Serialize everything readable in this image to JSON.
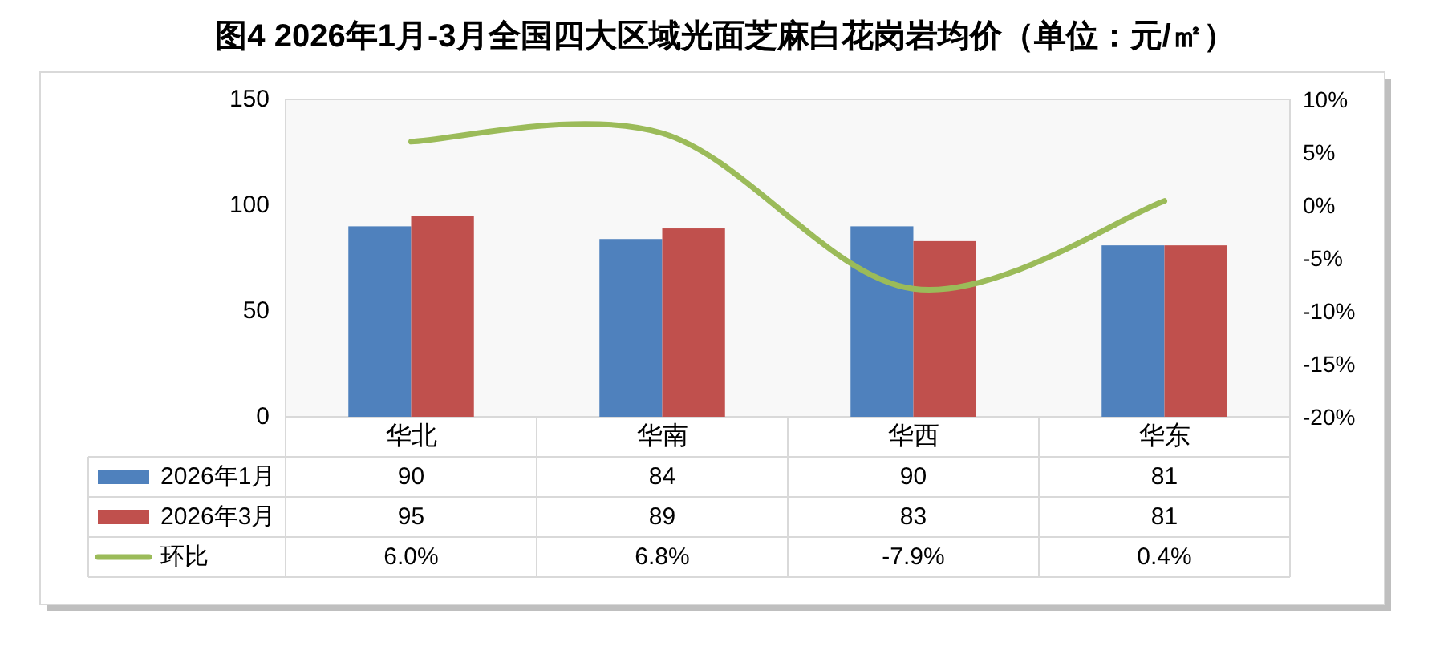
{
  "chart_data": {
    "type": "bar",
    "title": "图4 2026年1月-3月全国四大区域光面芝麻白花岗岩均价（单位：元/㎡）",
    "categories": [
      "华北",
      "华南",
      "华西",
      "华东"
    ],
    "series": [
      {
        "name": "2026年1月",
        "color": "#4f81bd",
        "values": [
          90,
          84,
          90,
          81
        ],
        "value_labels": [
          "90",
          "84",
          "90",
          "81"
        ]
      },
      {
        "name": "2026年3月",
        "color": "#c0504d",
        "values": [
          95,
          89,
          83,
          81
        ],
        "value_labels": [
          "95",
          "89",
          "83",
          "81"
        ]
      },
      {
        "name": "环比",
        "type": "line",
        "axis": "y2",
        "color": "#9bbb59",
        "values": [
          6.0,
          6.8,
          -7.9,
          0.4
        ],
        "value_labels": [
          "6.0%",
          "6.8%",
          "-7.9%",
          "0.4%"
        ]
      }
    ],
    "ylim": [
      0,
      150
    ],
    "yticks": [
      0,
      50,
      100,
      150
    ],
    "y2lim": [
      -20,
      10
    ],
    "y2ticks": [
      {
        "value": 10,
        "label": "10%"
      },
      {
        "value": 5,
        "label": "5%"
      },
      {
        "value": 0,
        "label": "0%"
      },
      {
        "value": -5,
        "label": "-5%"
      },
      {
        "value": -10,
        "label": "-10%"
      },
      {
        "value": -15,
        "label": "-15%"
      },
      {
        "value": -20,
        "label": "-20%"
      }
    ],
    "legend": "bottom"
  }
}
